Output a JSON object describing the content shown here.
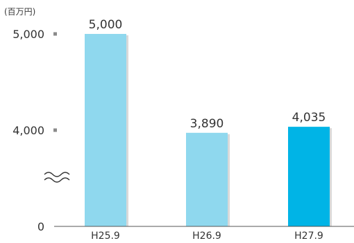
{
  "chart_data": {
    "type": "bar",
    "unit_label": "(百万円)",
    "categories": [
      "H25.9",
      "H26.9",
      "H27.9"
    ],
    "values": [
      5000,
      3890,
      4035
    ],
    "value_labels": [
      "5,000",
      "3,890",
      "4,035"
    ],
    "y_ticks": [
      {
        "value": 0,
        "label": "0"
      },
      {
        "value": 4000,
        "label": "4,000"
      },
      {
        "value": 5000,
        "label": "5,000"
      }
    ],
    "axis_break": true,
    "axis_break_symbol": "≈",
    "grid": false,
    "colors": {
      "bar_default": "#8fd8ee",
      "bar_highlight": "#00b4e6",
      "axis": "#555555",
      "tick_mark": "#8a8a8a"
    },
    "highlight_index": 2
  }
}
